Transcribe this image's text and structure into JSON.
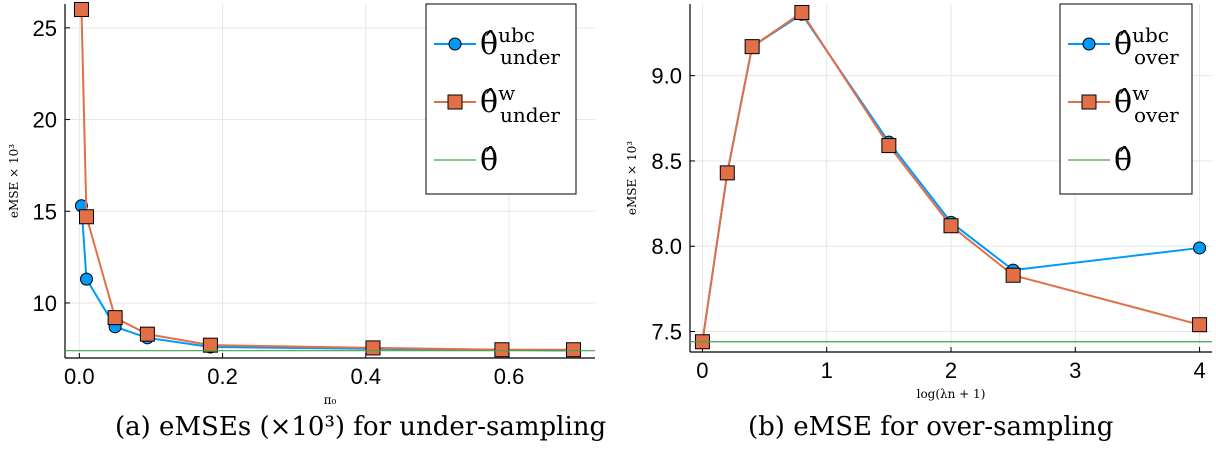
{
  "captions": {
    "a": "(a) eMSEs (×10³) for under-sampling",
    "b": "(b) eMSE for over-sampling"
  },
  "colors": {
    "blue": "#009AFA",
    "orange": "#E26F46",
    "green": "#3EA44E"
  },
  "chart_data": [
    {
      "type": "line",
      "xlabel": "π₀",
      "ylabel": "eMSE × 10³",
      "xlim": [
        -0.02,
        0.72
      ],
      "ylim": [
        7.0,
        26.3
      ],
      "xticks": [
        0.0,
        0.2,
        0.4,
        0.6
      ],
      "xtick_labels": [
        "0.0",
        "0.2",
        "0.4",
        "0.6"
      ],
      "yticks": [
        10,
        15,
        20,
        25
      ],
      "ytick_labels": [
        "10",
        "15",
        "20",
        "25"
      ],
      "grid": true,
      "legend_position": "top-right",
      "series": [
        {
          "name": "θ̂ ubc under",
          "color": "#009AFA",
          "marker": "circle",
          "x": [
            0.003,
            0.01,
            0.05,
            0.095,
            0.183,
            0.41,
            0.59,
            0.69
          ],
          "y": [
            15.3,
            11.3,
            8.7,
            8.1,
            7.6,
            7.5,
            7.45,
            7.4
          ]
        },
        {
          "name": "θ̂ w under",
          "color": "#E26F46",
          "marker": "square",
          "x": [
            0.003,
            0.01,
            0.05,
            0.095,
            0.183,
            0.41,
            0.59,
            0.69
          ],
          "y": [
            26.0,
            14.7,
            9.2,
            8.3,
            7.7,
            7.55,
            7.45,
            7.45
          ]
        },
        {
          "name": "θ̂",
          "color": "#3EA44E",
          "marker": "none",
          "hline": 7.4
        }
      ]
    },
    {
      "type": "line",
      "xlabel": "log(λn + 1)",
      "ylabel": "eMSE × 10³",
      "xlim": [
        -0.1,
        4.1
      ],
      "ylim": [
        7.38,
        9.42
      ],
      "xticks": [
        0,
        1,
        2,
        3,
        4
      ],
      "xtick_labels": [
        "0",
        "1",
        "2",
        "3",
        "4"
      ],
      "yticks": [
        7.5,
        8.0,
        8.5,
        9.0
      ],
      "ytick_labels": [
        "7.5",
        "8.0",
        "8.5",
        "9.0"
      ],
      "grid": true,
      "legend_position": "top-right",
      "series": [
        {
          "name": "θ̂ ubc over",
          "color": "#009AFA",
          "marker": "circle",
          "x": [
            0,
            0.2,
            0.4,
            0.8,
            1.5,
            2.0,
            2.5,
            4.0
          ],
          "y": [
            7.44,
            8.43,
            9.17,
            9.36,
            8.61,
            8.14,
            7.86,
            7.99
          ]
        },
        {
          "name": "θ̂ w over",
          "color": "#E26F46",
          "marker": "square",
          "x": [
            0,
            0.2,
            0.4,
            0.8,
            1.5,
            2.0,
            2.5,
            4.0
          ],
          "y": [
            7.44,
            8.43,
            9.17,
            9.37,
            8.59,
            8.12,
            7.83,
            7.54
          ]
        },
        {
          "name": "θ̂",
          "color": "#3EA44E",
          "marker": "none",
          "hline": 7.44
        }
      ]
    }
  ],
  "legends": [
    [
      {
        "label": "θ̂",
        "sup": "ubc",
        "sub": "under"
      },
      {
        "label": "θ̂",
        "sup": "w",
        "sub": "under"
      },
      {
        "label": "θ̂",
        "sup": "",
        "sub": ""
      }
    ],
    [
      {
        "label": "θ̂",
        "sup": "ubc",
        "sub": "over"
      },
      {
        "label": "θ̂",
        "sup": "w",
        "sub": "over"
      },
      {
        "label": "θ̂",
        "sup": "",
        "sub": ""
      }
    ]
  ]
}
